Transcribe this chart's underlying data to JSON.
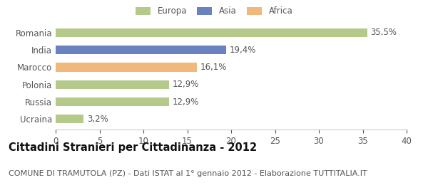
{
  "categories": [
    "Romania",
    "India",
    "Marocco",
    "Polonia",
    "Russia",
    "Ucraina"
  ],
  "values": [
    35.5,
    19.4,
    16.1,
    12.9,
    12.9,
    3.2
  ],
  "labels": [
    "35,5%",
    "19,4%",
    "16,1%",
    "12,9%",
    "12,9%",
    "3,2%"
  ],
  "colors": [
    "#b5c98a",
    "#6b82c0",
    "#f0b87a",
    "#b5c98a",
    "#b5c98a",
    "#b5c98a"
  ],
  "legend": [
    {
      "label": "Europa",
      "color": "#b5c98a"
    },
    {
      "label": "Asia",
      "color": "#6b82c0"
    },
    {
      "label": "Africa",
      "color": "#f0b87a"
    }
  ],
  "xlim": [
    0,
    40
  ],
  "xticks": [
    0,
    5,
    10,
    15,
    20,
    25,
    30,
    35,
    40
  ],
  "title": "Cittadini Stranieri per Cittadinanza - 2012",
  "subtitle": "COMUNE DI TRAMUTOLA (PZ) - Dati ISTAT al 1° gennaio 2012 - Elaborazione TUTTITALIA.IT",
  "background_color": "#ffffff",
  "bar_height": 0.5,
  "label_fontsize": 8.5,
  "tick_fontsize": 8.5,
  "title_fontsize": 10.5,
  "subtitle_fontsize": 8.0
}
